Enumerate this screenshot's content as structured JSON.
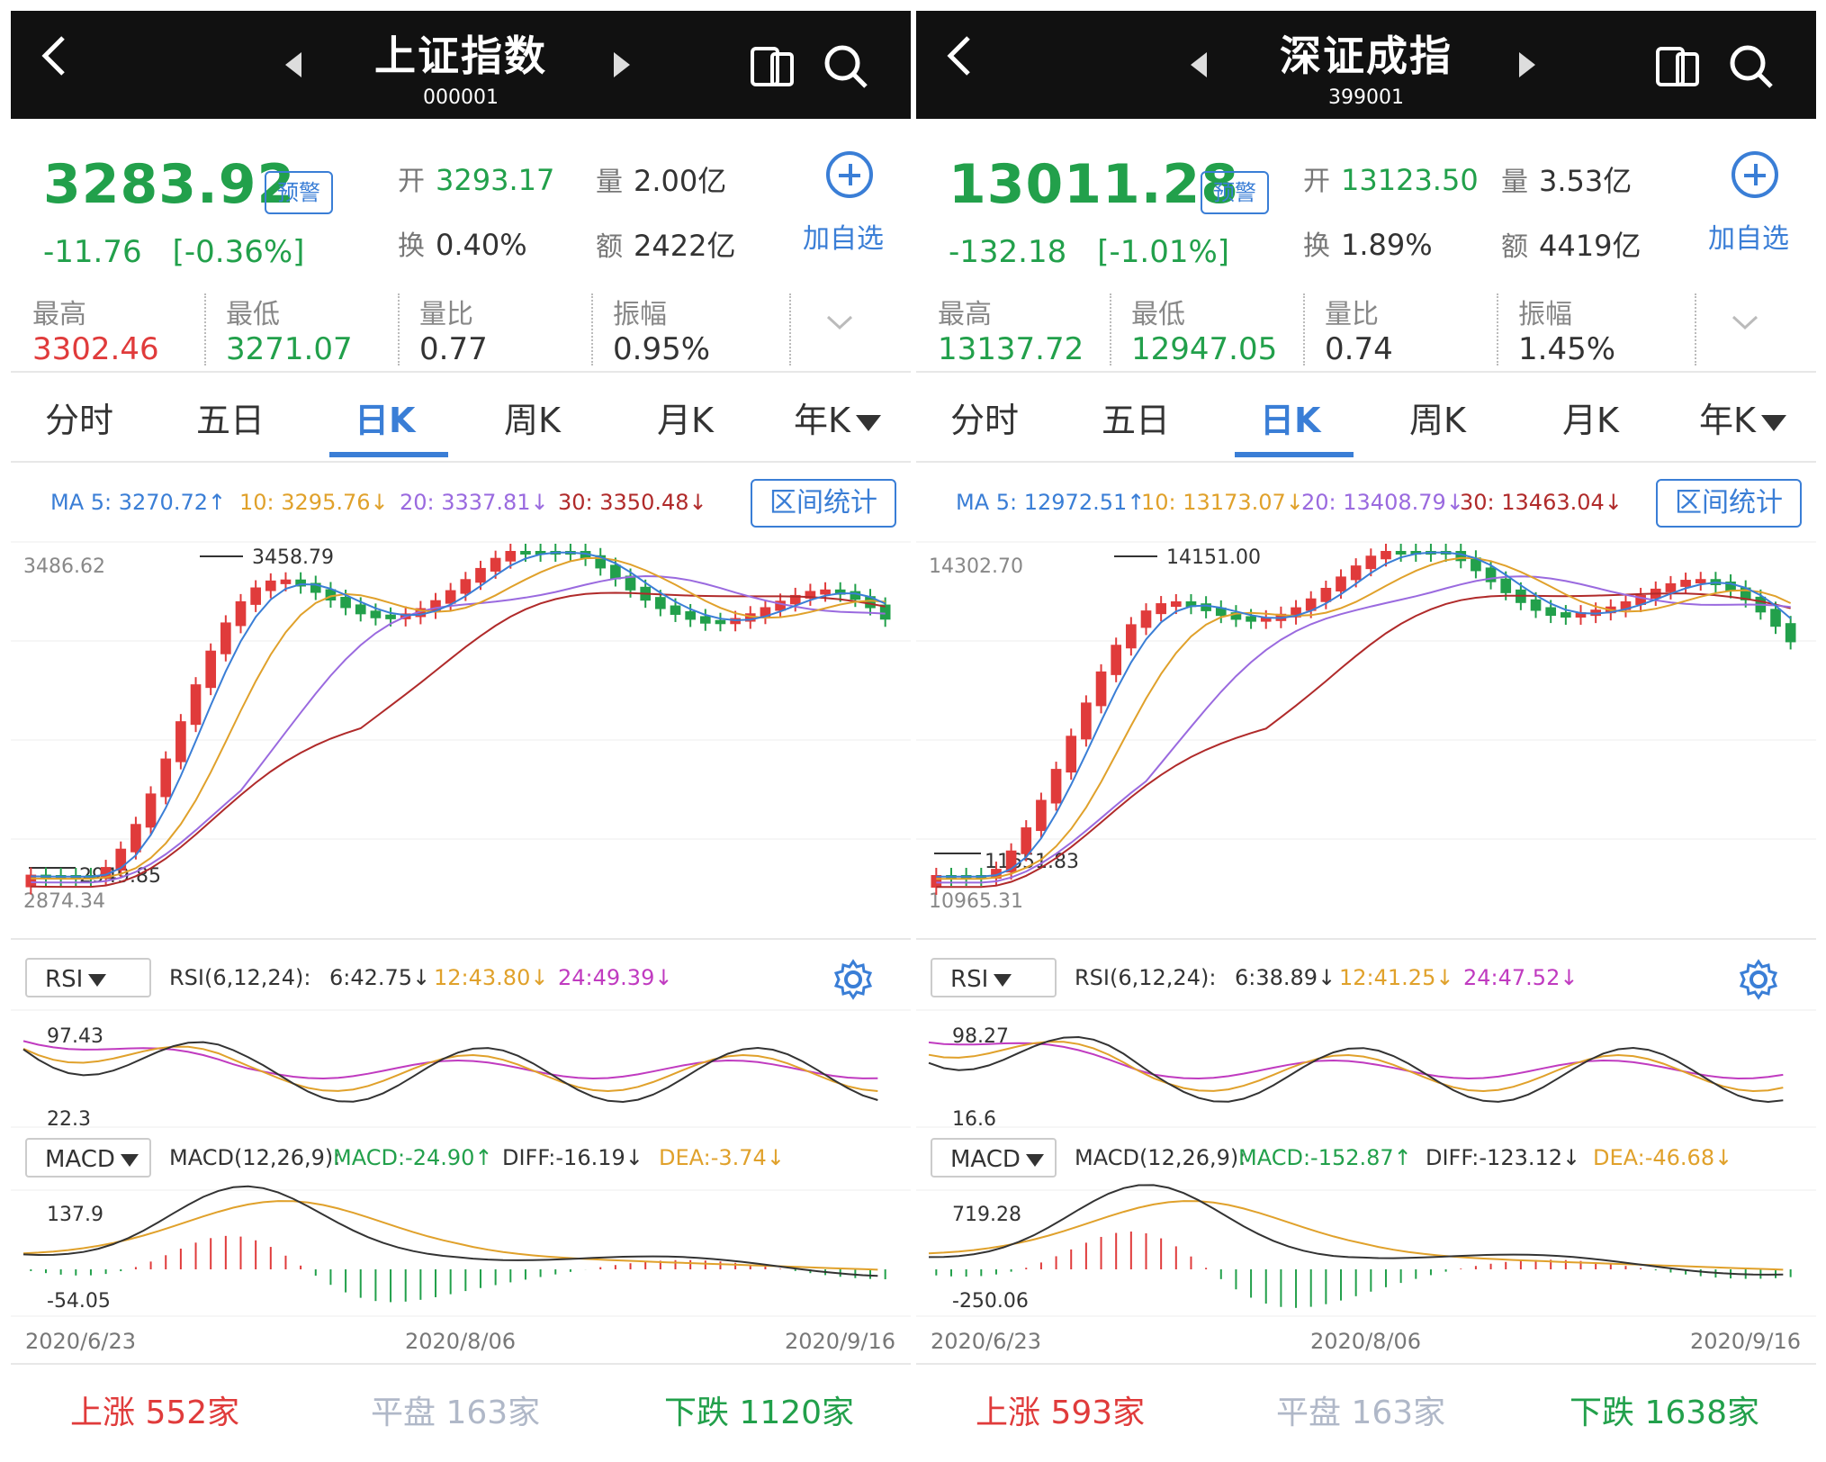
{
  "panels": [
    {
      "header": {
        "title": "上证指数",
        "code": "000001"
      },
      "price": "3283.92",
      "alert": "预警",
      "change": "-11.76",
      "change_pct": "[-0.36%]",
      "stats": [
        {
          "label": "开",
          "value": "3293.17",
          "green": true
        },
        {
          "label": "量",
          "value": "2.00亿",
          "green": false
        },
        {
          "label": "换",
          "value": "0.40%",
          "green": false
        },
        {
          "label": "额",
          "value": "2422亿",
          "green": false
        }
      ],
      "add_label": "加自选",
      "metrics": [
        {
          "label": "最高",
          "value": "3302.46",
          "color": "red"
        },
        {
          "label": "最低",
          "value": "3271.07",
          "color": "green"
        },
        {
          "label": "量比",
          "value": "0.77",
          "color": "none"
        },
        {
          "label": "振幅",
          "value": "0.95%",
          "color": "none"
        }
      ],
      "tabs": [
        "分时",
        "五日",
        "日K",
        "周K",
        "月K",
        "年K"
      ],
      "active_tab": "日K",
      "ma": [
        {
          "label": "MA 5: 3270.72↑",
          "color": "#3a7ed6"
        },
        {
          "label": "10: 3295.76↓",
          "color": "#e0a12b"
        },
        {
          "label": "20: 3337.81↓",
          "color": "#9a6adf"
        },
        {
          "label": "30: 3350.48↓",
          "color": "#b02a2a"
        }
      ],
      "range_label": "区间统计",
      "kline_labels": {
        "top": "3486.62",
        "peak": "3458.79",
        "bottom": "2874.34",
        "low": "2949.85"
      },
      "rsi": {
        "button": "RSI",
        "title": "RSI(6,12,24):",
        "v6": "6:42.75↓",
        "v12": "12:43.80↓",
        "v24": "24:49.39↓",
        "max": "97.43",
        "min": "22.3"
      },
      "macd": {
        "button": "MACD",
        "title": "MACD(12,26,9):",
        "macd": "MACD:-24.90↑",
        "diff": "DIFF:-16.19↓",
        "dea": "DEA:-3.74↓",
        "max": "137.9",
        "min": "-54.05"
      },
      "dates": [
        "2020/6/23",
        "2020/8/06",
        "2020/9/16"
      ],
      "footer": {
        "up": "上涨  552家",
        "flat": "平盘  163家",
        "down": "下跌  1120家"
      }
    },
    {
      "header": {
        "title": "深证成指",
        "code": "399001"
      },
      "price": "13011.28",
      "alert": "预警",
      "change": "-132.18",
      "change_pct": "[-1.01%]",
      "stats": [
        {
          "label": "开",
          "value": "13123.50",
          "green": true
        },
        {
          "label": "量",
          "value": "3.53亿",
          "green": false
        },
        {
          "label": "换",
          "value": "1.89%",
          "green": false
        },
        {
          "label": "额",
          "value": "4419亿",
          "green": false
        }
      ],
      "add_label": "加自选",
      "metrics": [
        {
          "label": "最高",
          "value": "13137.72",
          "color": "green"
        },
        {
          "label": "最低",
          "value": "12947.05",
          "color": "green"
        },
        {
          "label": "量比",
          "value": "0.74",
          "color": "none"
        },
        {
          "label": "振幅",
          "value": "1.45%",
          "color": "none"
        }
      ],
      "tabs": [
        "分时",
        "五日",
        "日K",
        "周K",
        "月K",
        "年K"
      ],
      "active_tab": "日K",
      "ma": [
        {
          "label": "MA 5: 12972.51↑",
          "color": "#3a7ed6"
        },
        {
          "label": "10: 13173.07↓",
          "color": "#e0a12b"
        },
        {
          "label": "20: 13408.79↓",
          "color": "#9a6adf"
        },
        {
          "label": "30: 13463.04↓",
          "color": "#b02a2a"
        }
      ],
      "range_label": "区间统计",
      "kline_labels": {
        "top": "14302.70",
        "peak": "14151.00",
        "bottom": "10965.31",
        "low": "11651.83"
      },
      "rsi": {
        "button": "RSI",
        "title": "RSI(6,12,24):",
        "v6": "6:38.89↓",
        "v12": "12:41.25↓",
        "v24": "24:47.52↓",
        "max": "98.27",
        "min": "16.6"
      },
      "macd": {
        "button": "MACD",
        "title": "MACD(12,26,9):",
        "macd": "MACD:-152.87↑",
        "diff": "DIFF:-123.12↓",
        "dea": "DEA:-46.68↓",
        "max": "719.28",
        "min": "-250.06"
      },
      "dates": [
        "2020/6/23",
        "2020/8/06",
        "2020/9/16"
      ],
      "footer": {
        "up": "上涨  593家",
        "flat": "平盘  163家",
        "down": "下跌  1638家"
      }
    }
  ],
  "colors": {
    "up": "#e03b3b",
    "down": "#22a04b",
    "accent": "#3a7ed6",
    "ma5": "#3a7ed6",
    "ma10": "#e0a12b",
    "ma20": "#9a6adf",
    "ma30": "#b02a2a"
  },
  "icons": [
    "back-icon",
    "prev-icon",
    "next-icon",
    "phone-icon",
    "search-icon",
    "plus-icon",
    "chevron-down-icon",
    "gear-icon"
  ]
}
